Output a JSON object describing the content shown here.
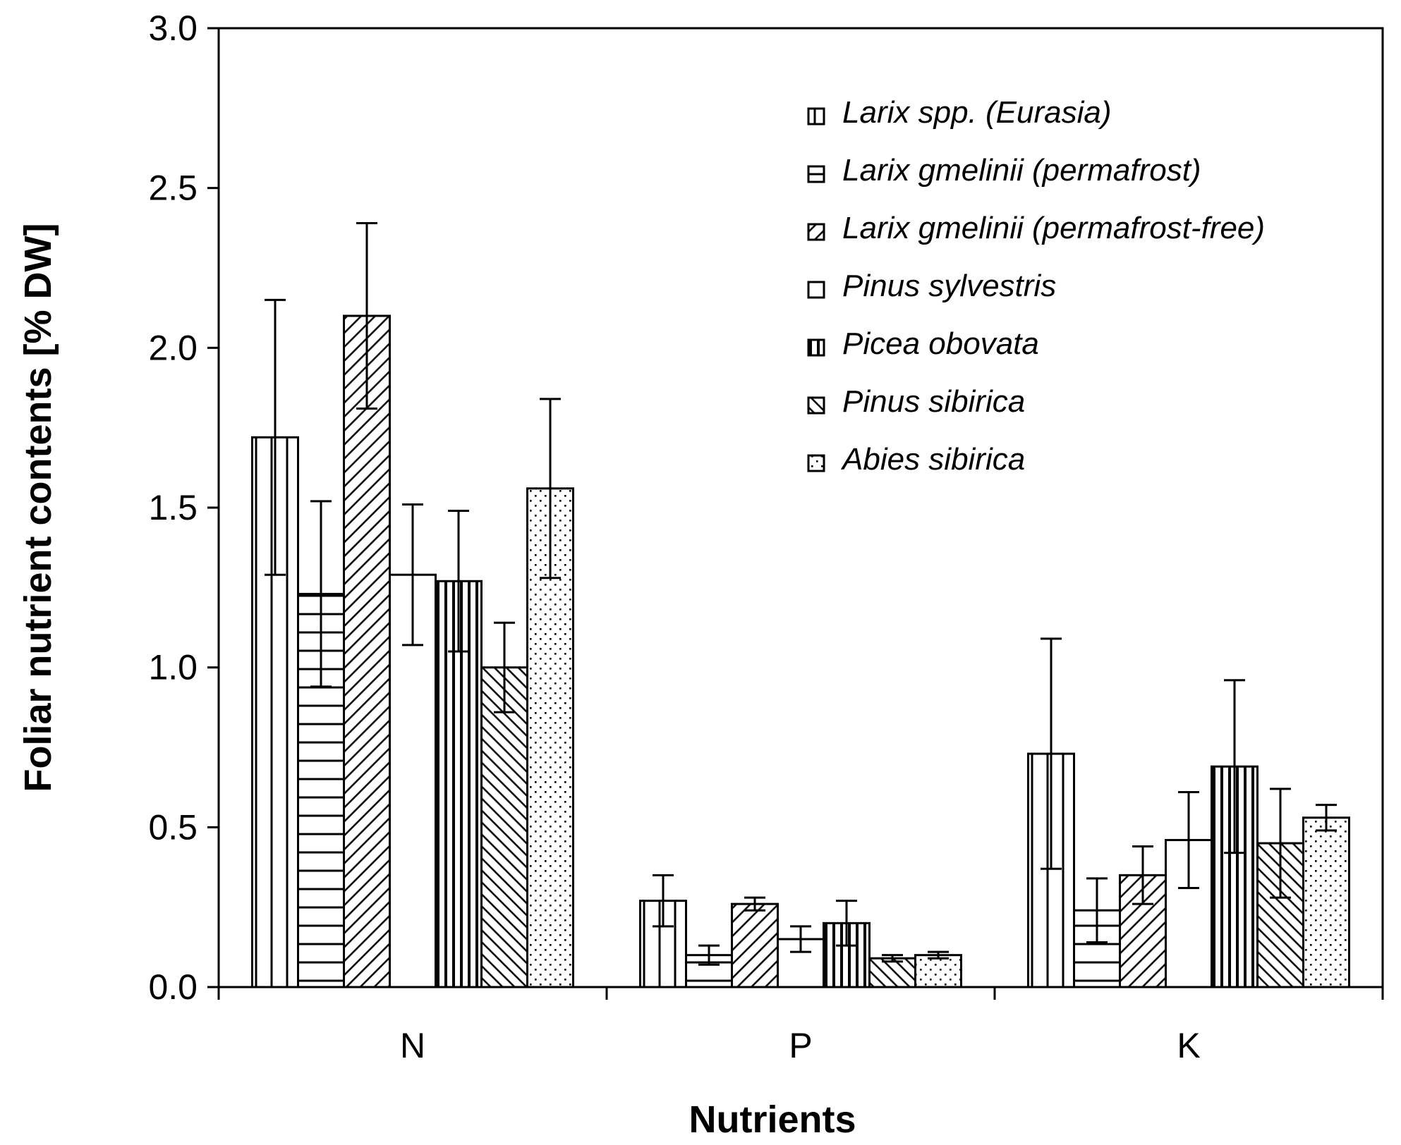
{
  "chart_data": {
    "type": "bar",
    "title": "",
    "xlabel": "Nutrients",
    "ylabel": "Foliar nutrient contents [% DW]",
    "categories": [
      "N",
      "P",
      "K"
    ],
    "ylim": [
      0.0,
      3.0
    ],
    "yticks": [
      "0.0",
      "0.5",
      "1.0",
      "1.5",
      "2.0",
      "2.5",
      "3.0"
    ],
    "legend_position": "top-right",
    "series": [
      {
        "name": "Larix spp. (Eurasia)",
        "pattern": "vlines-sparse",
        "values": [
          1.72,
          0.27,
          0.73
        ],
        "errors": [
          0.43,
          0.08,
          0.36
        ]
      },
      {
        "name": "Larix gmelinii (permafrost)",
        "pattern": "hlines",
        "values": [
          1.23,
          0.1,
          0.24
        ],
        "errors": [
          0.29,
          0.03,
          0.1
        ]
      },
      {
        "name": "Larix gmelinii (permafrost-free)",
        "pattern": "diag-fwd",
        "values": [
          2.1,
          0.26,
          0.35
        ],
        "errors": [
          0.29,
          0.02,
          0.09
        ]
      },
      {
        "name": "Pinus sylvestris",
        "pattern": "none",
        "values": [
          1.29,
          0.15,
          0.46
        ],
        "errors": [
          0.22,
          0.04,
          0.15
        ]
      },
      {
        "name": "Picea obovata",
        "pattern": "vlines-dense",
        "values": [
          1.27,
          0.2,
          0.69
        ],
        "errors": [
          0.22,
          0.07,
          0.27
        ]
      },
      {
        "name": "Pinus sibirica",
        "pattern": "diag-back",
        "values": [
          1.0,
          0.09,
          0.45
        ],
        "errors": [
          0.14,
          0.01,
          0.17
        ]
      },
      {
        "name": "Abies sibirica",
        "pattern": "dots",
        "values": [
          1.56,
          0.1,
          0.53
        ],
        "errors": [
          0.28,
          0.01,
          0.04
        ]
      }
    ]
  }
}
